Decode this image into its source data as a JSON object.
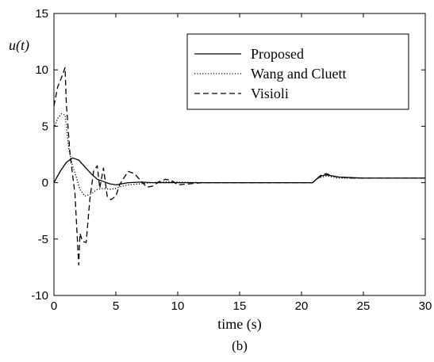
{
  "chart_data": {
    "type": "line",
    "xlabel": "time (s)",
    "ylabel": "u(t)",
    "caption": "(b)",
    "xlim": [
      0,
      30
    ],
    "ylim": [
      -10,
      15
    ],
    "xticks": [
      0,
      5,
      10,
      15,
      20,
      25,
      30
    ],
    "yticks": [
      -10,
      -5,
      0,
      5,
      10,
      15
    ],
    "xtick_labels": [
      "0",
      "5",
      "10",
      "15",
      "20",
      "25",
      "30"
    ],
    "ytick_labels": [
      "-10",
      "-5",
      "0",
      "5",
      "10",
      "15"
    ],
    "grid": false,
    "legend_position": "top-right",
    "series": [
      {
        "name": "Proposed",
        "style": "solid",
        "color": "#000000",
        "x": [
          0,
          0.5,
          1,
          1.5,
          2,
          2.5,
          3,
          3.5,
          4,
          4.5,
          5,
          5.5,
          6,
          7,
          8,
          9,
          10,
          12,
          15,
          18,
          20,
          20.9,
          21.2,
          21.6,
          22,
          22.5,
          23,
          24,
          25,
          27,
          30
        ],
        "y": [
          0,
          1.0,
          1.8,
          2.2,
          2.0,
          1.4,
          0.8,
          0.3,
          0.1,
          -0.1,
          -0.2,
          -0.1,
          0,
          0.05,
          0,
          0,
          0,
          0,
          0,
          0,
          0,
          0,
          0.3,
          0.6,
          0.7,
          0.6,
          0.5,
          0.45,
          0.4,
          0.4,
          0.4
        ]
      },
      {
        "name": "Wang and Cluett",
        "style": "dotted",
        "color": "#000000",
        "x": [
          0,
          0.3,
          0.6,
          0.9,
          1.2,
          1.5,
          1.8,
          2.1,
          2.5,
          3,
          3.5,
          4,
          4.5,
          5,
          5.5,
          6,
          7,
          8,
          9,
          10,
          12,
          15,
          18,
          20,
          20.9,
          21.3,
          21.7,
          22,
          22.5,
          23,
          24,
          25,
          27,
          30
        ],
        "y": [
          4.8,
          5.7,
          6.1,
          6.0,
          3.0,
          1.5,
          0.5,
          -0.6,
          -1.2,
          -1.0,
          -0.6,
          -0.5,
          -0.6,
          -0.5,
          -0.3,
          -0.2,
          -0.1,
          0,
          0.1,
          0.05,
          0,
          0,
          0,
          0,
          0,
          0.4,
          0.5,
          0.6,
          0.5,
          0.4,
          0.4,
          0.4,
          0.4,
          0.4
        ]
      },
      {
        "name": "Visioli",
        "style": "dashed",
        "color": "#000000",
        "x": [
          0,
          0.3,
          0.6,
          0.9,
          1.0,
          1.3,
          1.7,
          2.0,
          2.1,
          2.3,
          2.6,
          2.9,
          3.2,
          3.5,
          3.7,
          4.0,
          4.3,
          4.6,
          5.0,
          5.3,
          5.7,
          6.0,
          6.5,
          7.0,
          7.5,
          8.0,
          8.5,
          9.0,
          9.5,
          10.0,
          11.0,
          12.0,
          15.0,
          18.0,
          20.0,
          20.9,
          21.2,
          21.6,
          22.0,
          22.5,
          23.0,
          24.0,
          25.0,
          27.0,
          30.0
        ],
        "y": [
          6.8,
          8.5,
          9.3,
          10.2,
          7.0,
          2.5,
          -1.0,
          -7.3,
          -4.5,
          -5.2,
          -5.3,
          -1.5,
          1.0,
          1.5,
          -0.5,
          1.3,
          -1.2,
          -1.5,
          -1.2,
          -0.2,
          0.5,
          1.0,
          0.8,
          0.2,
          -0.4,
          -0.3,
          0.1,
          0.3,
          0.2,
          -0.2,
          -0.1,
          0,
          0,
          0,
          0,
          0,
          0.3,
          0.7,
          0.8,
          0.6,
          0.5,
          0.4,
          0.4,
          0.4,
          0.4
        ]
      }
    ]
  }
}
